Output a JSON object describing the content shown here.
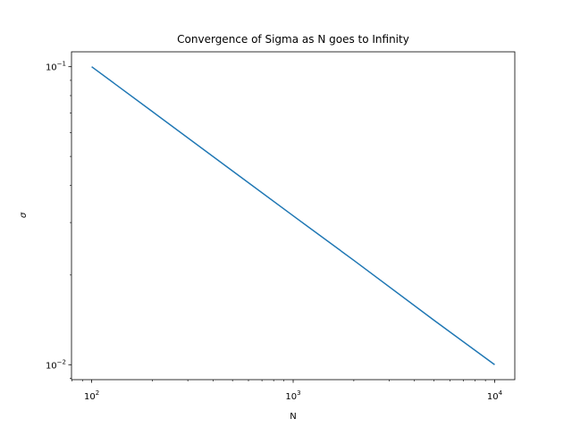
{
  "chart_data": {
    "type": "line",
    "title": "Convergence of Sigma as N goes to Infinity",
    "xlabel": "N",
    "ylabel": "σ",
    "xscale": "log",
    "yscale": "log",
    "xlim": [
      79.4,
      12589
    ],
    "ylim": [
      0.00891,
      0.1122
    ],
    "grid": false,
    "x_ticks": [
      {
        "value": 100,
        "base": "10",
        "exp": "2"
      },
      {
        "value": 1000,
        "base": "10",
        "exp": "3"
      },
      {
        "value": 10000,
        "base": "10",
        "exp": "4"
      }
    ],
    "y_ticks": [
      {
        "value": 0.01,
        "base": "10",
        "exp": "−2"
      },
      {
        "value": 0.1,
        "base": "10",
        "exp": "−1"
      }
    ],
    "series": [
      {
        "color": "#1f77b4",
        "x": [
          100,
          200,
          500,
          1000,
          2000,
          5000,
          10000
        ],
        "y": [
          0.1,
          0.0707,
          0.0447,
          0.0316,
          0.0224,
          0.0141,
          0.01
        ]
      }
    ]
  }
}
